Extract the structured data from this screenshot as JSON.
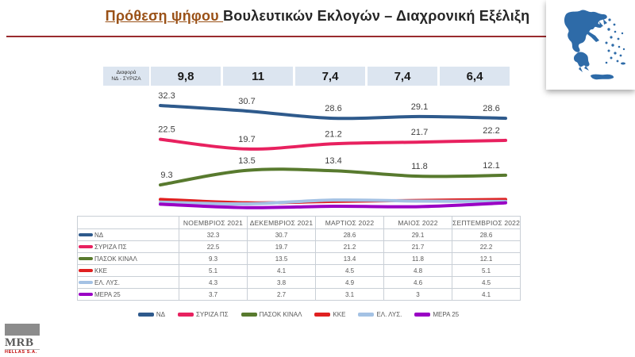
{
  "title": {
    "highlight": "Πρόθεση ψήφου ",
    "rest": "Βουλευτικών Εκλογών – Διαχρονική Εξέλιξη"
  },
  "diff_row": {
    "label_line1": "Διαφορά",
    "label_line2": "ΝΔ - ΣΥΡΙΖΑ",
    "values": [
      "9,8",
      "11",
      "7,4",
      "7,4",
      "6,4"
    ]
  },
  "chart_data": {
    "type": "line",
    "title": "Πρόθεση ψήφου Βουλευτικών Εκλογών – Διαχρονική Εξέλιξη",
    "categories": [
      "ΝΟΕΜΒΡΙΟΣ 2021",
      "ΔΕΚΕΜΒΡΙΟΣ 2021",
      "ΜΑΡΤΙΟΣ 2022",
      "ΜΑΙΟΣ 2022",
      "ΣΕΠΤΕΜΒΡΙΟΣ 2022"
    ],
    "series": [
      {
        "name": "ΝΔ",
        "color": "#2E5A8C",
        "values": [
          32.3,
          30.7,
          28.6,
          29.1,
          28.6
        ],
        "labels_visible": true
      },
      {
        "name": "ΣΥΡΙΖΑ ΠΣ",
        "color": "#E8215F",
        "values": [
          22.5,
          19.7,
          21.2,
          21.7,
          22.2
        ],
        "labels_visible": true
      },
      {
        "name": "ΠΑΣΟΚ ΚΙΝΑΛ",
        "color": "#587A2E",
        "values": [
          9.3,
          13.5,
          13.4,
          11.8,
          12.1
        ],
        "labels_visible": true
      },
      {
        "name": "ΚΚΕ",
        "color": "#E02020",
        "values": [
          5.1,
          4.1,
          4.5,
          4.8,
          5.1
        ],
        "labels_visible": false
      },
      {
        "name": "ΕΛ. ΛΥΣ.",
        "color": "#A4C2E4",
        "values": [
          4.3,
          3.8,
          4.9,
          4.6,
          4.5
        ],
        "labels_visible": false
      },
      {
        "name": "ΜΕΡΑ 25",
        "color": "#9A00C4",
        "values": [
          3.7,
          2.7,
          3.1,
          3,
          4.1
        ],
        "labels_visible": false
      }
    ],
    "smooth": true,
    "grid": false,
    "legend_position": "bottom",
    "value_decimal_separator_chart": ".",
    "value_decimal_separator_diff": ","
  },
  "map": {
    "name": "greece-map",
    "color": "#2E6BA8"
  },
  "logo": {
    "name": "MRB",
    "sub": "HELLAS S.A."
  },
  "colors": {
    "title_highlight": "#9A5117",
    "title_text": "#262626",
    "title_rule": "#992B2E",
    "diff_box_bg": "#DCE5F0",
    "table_text": "#595959",
    "label_text": "#3F3F3F"
  }
}
